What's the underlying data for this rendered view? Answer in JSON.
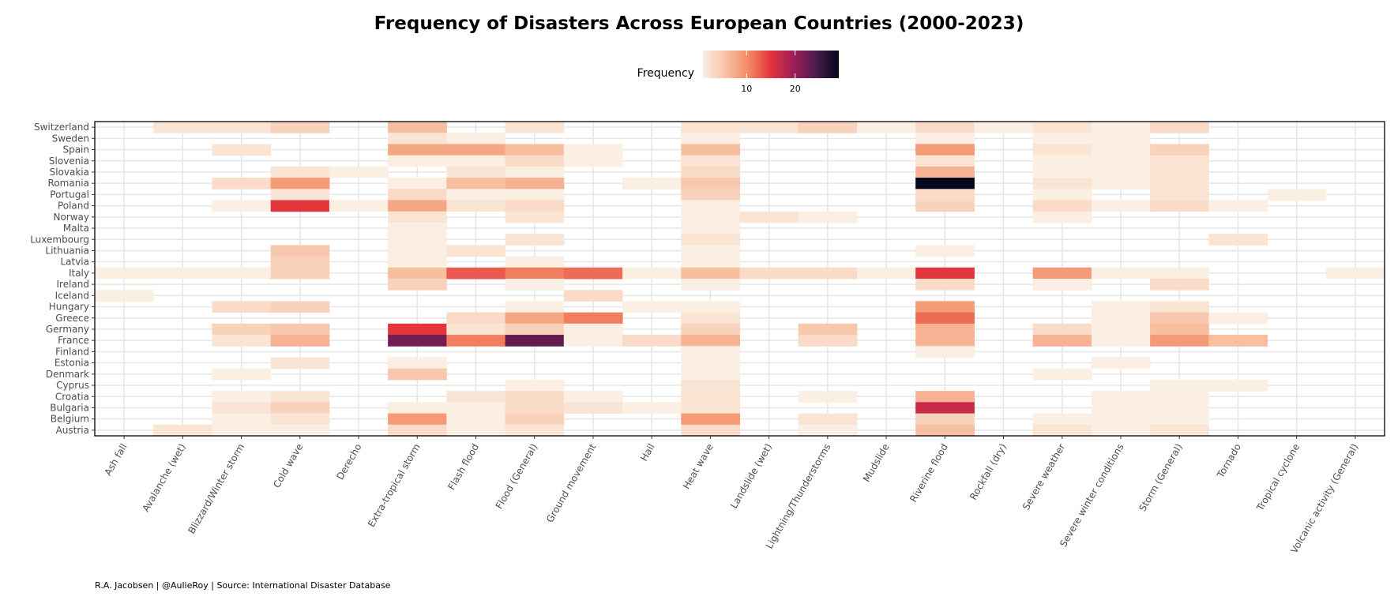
{
  "chart_data": {
    "type": "heatmap",
    "title": "Frequency of Disasters Across European Countries (2000-2023)",
    "caption": "R.A. Jacobsen | @AulieRoy | Source: International Disaster Database",
    "legend": {
      "title": "Frequency",
      "ticks": [
        10,
        20
      ],
      "position": "top",
      "range": [
        1,
        29
      ]
    },
    "colors": [
      "#fbeee2",
      "#f7c2a5",
      "#f38a64",
      "#e4343c",
      "#9e1d58",
      "#4a1c4e",
      "#03051a"
    ],
    "grid": true,
    "categories": [
      "Ash fall",
      "Avalanche (wet)",
      "Blizzard/Winter storm",
      "Cold wave",
      "Derecho",
      "Extra-tropical storm",
      "Flash flood",
      "Flood (General)",
      "Ground movement",
      "Hail",
      "Heat wave",
      "Landslide (wet)",
      "Lightning/Thunderstorms",
      "Mudslide",
      "Riverine flood",
      "Rockfall (dry)",
      "Severe weather",
      "Severe winter conditions",
      "Storm (General)",
      "Tornado",
      "Tropical cyclone",
      "Volcanic activity (General)"
    ],
    "countries": [
      "Switzerland",
      "Sweden",
      "Spain",
      "Slovenia",
      "Slovakia",
      "Romania",
      "Portugal",
      "Poland",
      "Norway",
      "Malta",
      "Luxembourg",
      "Lithuania",
      "Latvia",
      "Italy",
      "Ireland",
      "Iceland",
      "Hungary",
      "Greece",
      "Germany",
      "France",
      "Finland",
      "Estonia",
      "Denmark",
      "Cyprus",
      "Croatia",
      "Bulgaria",
      "Belgium",
      "Austria"
    ],
    "cells": [
      [
        "Switzerland",
        "Avalanche (wet)",
        2
      ],
      [
        "Switzerland",
        "Blizzard/Winter storm",
        2
      ],
      [
        "Switzerland",
        "Cold wave",
        4
      ],
      [
        "Switzerland",
        "Extra-tropical storm",
        6
      ],
      [
        "Switzerland",
        "Flood (General)",
        2
      ],
      [
        "Switzerland",
        "Heat wave",
        2
      ],
      [
        "Switzerland",
        "Landslide (wet)",
        2
      ],
      [
        "Switzerland",
        "Lightning/Thunderstorms",
        4
      ],
      [
        "Switzerland",
        "Mudslide",
        1
      ],
      [
        "Switzerland",
        "Riverine flood",
        3
      ],
      [
        "Switzerland",
        "Rockfall (dry)",
        1
      ],
      [
        "Switzerland",
        "Severe weather",
        2
      ],
      [
        "Switzerland",
        "Severe winter conditions",
        1
      ],
      [
        "Switzerland",
        "Storm (General)",
        3
      ],
      [
        "Sweden",
        "Extra-tropical storm",
        2
      ],
      [
        "Sweden",
        "Flash flood",
        1
      ],
      [
        "Sweden",
        "Heat wave",
        1
      ],
      [
        "Sweden",
        "Riverine flood",
        1
      ],
      [
        "Sweden",
        "Severe weather",
        1
      ],
      [
        "Sweden",
        "Severe winter conditions",
        1
      ],
      [
        "Spain",
        "Blizzard/Winter storm",
        2
      ],
      [
        "Spain",
        "Extra-tropical storm",
        8
      ],
      [
        "Spain",
        "Flash flood",
        8
      ],
      [
        "Spain",
        "Flood (General)",
        6
      ],
      [
        "Spain",
        "Ground movement",
        1
      ],
      [
        "Spain",
        "Heat wave",
        6
      ],
      [
        "Spain",
        "Riverine flood",
        9
      ],
      [
        "Spain",
        "Severe weather",
        2
      ],
      [
        "Spain",
        "Severe winter conditions",
        1
      ],
      [
        "Spain",
        "Storm (General)",
        4
      ],
      [
        "Slovenia",
        "Extra-tropical storm",
        1
      ],
      [
        "Slovenia",
        "Flash flood",
        1
      ],
      [
        "Slovenia",
        "Flood (General)",
        3
      ],
      [
        "Slovenia",
        "Ground movement",
        1
      ],
      [
        "Slovenia",
        "Heat wave",
        2
      ],
      [
        "Slovenia",
        "Riverine flood",
        2
      ],
      [
        "Slovenia",
        "Severe weather",
        1
      ],
      [
        "Slovenia",
        "Severe winter conditions",
        1
      ],
      [
        "Slovenia",
        "Storm (General)",
        2
      ],
      [
        "Slovakia",
        "Cold wave",
        2
      ],
      [
        "Slovakia",
        "Derecho",
        1
      ],
      [
        "Slovakia",
        "Flash flood",
        2
      ],
      [
        "Slovakia",
        "Flood (General)",
        1
      ],
      [
        "Slovakia",
        "Heat wave",
        3
      ],
      [
        "Slovakia",
        "Riverine flood",
        7
      ],
      [
        "Slovakia",
        "Severe weather",
        1
      ],
      [
        "Slovakia",
        "Severe winter conditions",
        1
      ],
      [
        "Slovakia",
        "Storm (General)",
        2
      ],
      [
        "Romania",
        "Blizzard/Winter storm",
        3
      ],
      [
        "Romania",
        "Cold wave",
        9
      ],
      [
        "Romania",
        "Extra-tropical storm",
        1
      ],
      [
        "Romania",
        "Flash flood",
        6
      ],
      [
        "Romania",
        "Flood (General)",
        7
      ],
      [
        "Romania",
        "Hail",
        1
      ],
      [
        "Romania",
        "Heat wave",
        5
      ],
      [
        "Romania",
        "Riverine flood",
        29
      ],
      [
        "Romania",
        "Severe weather",
        2
      ],
      [
        "Romania",
        "Severe winter conditions",
        1
      ],
      [
        "Romania",
        "Storm (General)",
        2
      ],
      [
        "Portugal",
        "Cold wave",
        2
      ],
      [
        "Portugal",
        "Extra-tropical storm",
        3
      ],
      [
        "Portugal",
        "Flash flood",
        1
      ],
      [
        "Portugal",
        "Flood (General)",
        1
      ],
      [
        "Portugal",
        "Heat wave",
        4
      ],
      [
        "Portugal",
        "Riverine flood",
        3
      ],
      [
        "Portugal",
        "Severe weather",
        1
      ],
      [
        "Portugal",
        "Storm (General)",
        2
      ],
      [
        "Portugal",
        "Tropical cyclone",
        1
      ],
      [
        "Poland",
        "Blizzard/Winter storm",
        1
      ],
      [
        "Poland",
        "Cold wave",
        15
      ],
      [
        "Poland",
        "Derecho",
        1
      ],
      [
        "Poland",
        "Extra-tropical storm",
        8
      ],
      [
        "Poland",
        "Flash flood",
        2
      ],
      [
        "Poland",
        "Flood (General)",
        3
      ],
      [
        "Poland",
        "Heat wave",
        1
      ],
      [
        "Poland",
        "Riverine flood",
        4
      ],
      [
        "Poland",
        "Severe weather",
        3
      ],
      [
        "Poland",
        "Severe winter conditions",
        1
      ],
      [
        "Poland",
        "Storm (General)",
        3
      ],
      [
        "Poland",
        "Tornado",
        1
      ],
      [
        "Norway",
        "Extra-tropical storm",
        2
      ],
      [
        "Norway",
        "Flood (General)",
        2
      ],
      [
        "Norway",
        "Heat wave",
        1
      ],
      [
        "Norway",
        "Landslide (wet)",
        2
      ],
      [
        "Norway",
        "Lightning/Thunderstorms",
        1
      ],
      [
        "Norway",
        "Severe weather",
        1
      ],
      [
        "Malta",
        "Extra-tropical storm",
        1
      ],
      [
        "Malta",
        "Heat wave",
        1
      ],
      [
        "Luxembourg",
        "Extra-tropical storm",
        1
      ],
      [
        "Luxembourg",
        "Flood (General)",
        2
      ],
      [
        "Luxembourg",
        "Heat wave",
        2
      ],
      [
        "Luxembourg",
        "Tornado",
        2
      ],
      [
        "Lithuania",
        "Cold wave",
        5
      ],
      [
        "Lithuania",
        "Extra-tropical storm",
        1
      ],
      [
        "Lithuania",
        "Flash flood",
        2
      ],
      [
        "Lithuania",
        "Heat wave",
        1
      ],
      [
        "Lithuania",
        "Riverine flood",
        1
      ],
      [
        "Latvia",
        "Cold wave",
        4
      ],
      [
        "Latvia",
        "Extra-tropical storm",
        1
      ],
      [
        "Latvia",
        "Flood (General)",
        1
      ],
      [
        "Latvia",
        "Heat wave",
        1
      ],
      [
        "Italy",
        "Ash fall",
        1
      ],
      [
        "Italy",
        "Avalanche (wet)",
        1
      ],
      [
        "Italy",
        "Blizzard/Winter storm",
        1
      ],
      [
        "Italy",
        "Cold wave",
        4
      ],
      [
        "Italy",
        "Extra-tropical storm",
        6
      ],
      [
        "Italy",
        "Flash flood",
        13
      ],
      [
        "Italy",
        "Flood (General)",
        11
      ],
      [
        "Italy",
        "Ground movement",
        12
      ],
      [
        "Italy",
        "Hail",
        1
      ],
      [
        "Italy",
        "Heat wave",
        6
      ],
      [
        "Italy",
        "Landslide (wet)",
        3
      ],
      [
        "Italy",
        "Lightning/Thunderstorms",
        3
      ],
      [
        "Italy",
        "Mudslide",
        1
      ],
      [
        "Italy",
        "Riverine flood",
        15
      ],
      [
        "Italy",
        "Severe weather",
        9
      ],
      [
        "Italy",
        "Severe winter conditions",
        1
      ],
      [
        "Italy",
        "Storm (General)",
        1
      ],
      [
        "Italy",
        "Volcanic activity (General)",
        1
      ],
      [
        "Ireland",
        "Extra-tropical storm",
        4
      ],
      [
        "Ireland",
        "Flood (General)",
        1
      ],
      [
        "Ireland",
        "Heat wave",
        1
      ],
      [
        "Ireland",
        "Riverine flood",
        3
      ],
      [
        "Ireland",
        "Severe weather",
        1
      ],
      [
        "Ireland",
        "Storm (General)",
        3
      ],
      [
        "Iceland",
        "Ash fall",
        1
      ],
      [
        "Iceland",
        "Ground movement",
        3
      ],
      [
        "Hungary",
        "Blizzard/Winter storm",
        3
      ],
      [
        "Hungary",
        "Cold wave",
        4
      ],
      [
        "Hungary",
        "Flood (General)",
        1
      ],
      [
        "Hungary",
        "Hail",
        1
      ],
      [
        "Hungary",
        "Heat wave",
        1
      ],
      [
        "Hungary",
        "Riverine flood",
        9
      ],
      [
        "Hungary",
        "Severe winter conditions",
        1
      ],
      [
        "Hungary",
        "Storm (General)",
        2
      ],
      [
        "Greece",
        "Flash flood",
        3
      ],
      [
        "Greece",
        "Flood (General)",
        8
      ],
      [
        "Greece",
        "Ground movement",
        11
      ],
      [
        "Greece",
        "Heat wave",
        2
      ],
      [
        "Greece",
        "Riverine flood",
        12
      ],
      [
        "Greece",
        "Severe winter conditions",
        1
      ],
      [
        "Greece",
        "Storm (General)",
        5
      ],
      [
        "Greece",
        "Tornado",
        1
      ],
      [
        "Germany",
        "Blizzard/Winter storm",
        4
      ],
      [
        "Germany",
        "Cold wave",
        5
      ],
      [
        "Germany",
        "Extra-tropical storm",
        15
      ],
      [
        "Germany",
        "Flash flood",
        2
      ],
      [
        "Germany",
        "Flood (General)",
        4
      ],
      [
        "Germany",
        "Ground movement",
        1
      ],
      [
        "Germany",
        "Heat wave",
        4
      ],
      [
        "Germany",
        "Lightning/Thunderstorms",
        5
      ],
      [
        "Germany",
        "Riverine flood",
        7
      ],
      [
        "Germany",
        "Severe weather",
        3
      ],
      [
        "Germany",
        "Severe winter conditions",
        1
      ],
      [
        "Germany",
        "Storm (General)",
        6
      ],
      [
        "France",
        "Blizzard/Winter storm",
        2
      ],
      [
        "France",
        "Cold wave",
        7
      ],
      [
        "France",
        "Extra-tropical storm",
        22
      ],
      [
        "France",
        "Flash flood",
        11
      ],
      [
        "France",
        "Flood (General)",
        23
      ],
      [
        "France",
        "Ground movement",
        1
      ],
      [
        "France",
        "Hail",
        3
      ],
      [
        "France",
        "Heat wave",
        7
      ],
      [
        "France",
        "Lightning/Thunderstorms",
        3
      ],
      [
        "France",
        "Riverine flood",
        7
      ],
      [
        "France",
        "Severe weather",
        7
      ],
      [
        "France",
        "Severe winter conditions",
        1
      ],
      [
        "France",
        "Storm (General)",
        9
      ],
      [
        "France",
        "Tornado",
        6
      ],
      [
        "Finland",
        "Heat wave",
        1
      ],
      [
        "Finland",
        "Riverine flood",
        1
      ],
      [
        "Estonia",
        "Cold wave",
        2
      ],
      [
        "Estonia",
        "Extra-tropical storm",
        1
      ],
      [
        "Estonia",
        "Heat wave",
        1
      ],
      [
        "Estonia",
        "Severe winter conditions",
        1
      ],
      [
        "Denmark",
        "Blizzard/Winter storm",
        1
      ],
      [
        "Denmark",
        "Extra-tropical storm",
        5
      ],
      [
        "Denmark",
        "Heat wave",
        1
      ],
      [
        "Denmark",
        "Severe weather",
        1
      ],
      [
        "Cyprus",
        "Flood (General)",
        1
      ],
      [
        "Cyprus",
        "Heat wave",
        2
      ],
      [
        "Cyprus",
        "Storm (General)",
        1
      ],
      [
        "Cyprus",
        "Tornado",
        1
      ],
      [
        "Croatia",
        "Blizzard/Winter storm",
        1
      ],
      [
        "Croatia",
        "Cold wave",
        2
      ],
      [
        "Croatia",
        "Flash flood",
        2
      ],
      [
        "Croatia",
        "Flood (General)",
        3
      ],
      [
        "Croatia",
        "Ground movement",
        1
      ],
      [
        "Croatia",
        "Heat wave",
        2
      ],
      [
        "Croatia",
        "Lightning/Thunderstorms",
        1
      ],
      [
        "Croatia",
        "Riverine flood",
        7
      ],
      [
        "Croatia",
        "Severe winter conditions",
        1
      ],
      [
        "Croatia",
        "Storm (General)",
        1
      ],
      [
        "Bulgaria",
        "Blizzard/Winter storm",
        2
      ],
      [
        "Bulgaria",
        "Cold wave",
        4
      ],
      [
        "Bulgaria",
        "Extra-tropical storm",
        1
      ],
      [
        "Bulgaria",
        "Flash flood",
        1
      ],
      [
        "Bulgaria",
        "Flood (General)",
        3
      ],
      [
        "Bulgaria",
        "Ground movement",
        2
      ],
      [
        "Bulgaria",
        "Hail",
        1
      ],
      [
        "Bulgaria",
        "Heat wave",
        2
      ],
      [
        "Bulgaria",
        "Riverine flood",
        17
      ],
      [
        "Bulgaria",
        "Severe winter conditions",
        1
      ],
      [
        "Bulgaria",
        "Storm (General)",
        1
      ],
      [
        "Belgium",
        "Blizzard/Winter storm",
        1
      ],
      [
        "Belgium",
        "Cold wave",
        2
      ],
      [
        "Belgium",
        "Extra-tropical storm",
        9
      ],
      [
        "Belgium",
        "Flash flood",
        1
      ],
      [
        "Belgium",
        "Flood (General)",
        4
      ],
      [
        "Belgium",
        "Heat wave",
        9
      ],
      [
        "Belgium",
        "Lightning/Thunderstorms",
        2
      ],
      [
        "Belgium",
        "Riverine flood",
        4
      ],
      [
        "Belgium",
        "Severe weather",
        1
      ],
      [
        "Belgium",
        "Severe winter conditions",
        1
      ],
      [
        "Belgium",
        "Storm (General)",
        1
      ],
      [
        "Austria",
        "Avalanche (wet)",
        2
      ],
      [
        "Austria",
        "Blizzard/Winter storm",
        1
      ],
      [
        "Austria",
        "Cold wave",
        1
      ],
      [
        "Austria",
        "Extra-tropical storm",
        3
      ],
      [
        "Austria",
        "Flash flood",
        1
      ],
      [
        "Austria",
        "Flood (General)",
        2
      ],
      [
        "Austria",
        "Heat wave",
        3
      ],
      [
        "Austria",
        "Lightning/Thunderstorms",
        1
      ],
      [
        "Austria",
        "Riverine flood",
        6
      ],
      [
        "Austria",
        "Severe weather",
        2
      ],
      [
        "Austria",
        "Severe winter conditions",
        1
      ],
      [
        "Austria",
        "Storm (General)",
        2
      ]
    ]
  }
}
